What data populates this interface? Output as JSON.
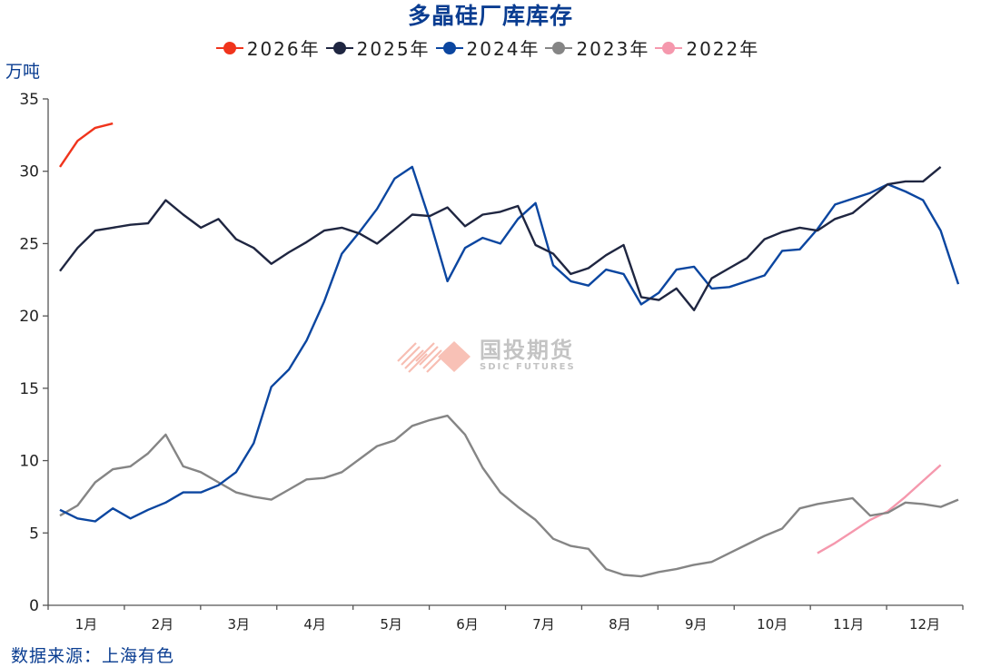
{
  "header": {
    "title": "多晶硅厂库库存",
    "unit": "万吨"
  },
  "legend": [
    {
      "label": "2026年",
      "color": "#f0341c"
    },
    {
      "label": "2025年",
      "color": "#1f2641"
    },
    {
      "label": "2024年",
      "color": "#0b46a0"
    },
    {
      "label": "2023年",
      "color": "#858585"
    },
    {
      "label": "2022年",
      "color": "#f598ad"
    }
  ],
  "footer": {
    "source": "数据来源：上海有色"
  },
  "watermark": {
    "name_cn": "国投期货",
    "name_en": "SDIC FUTURES"
  },
  "chart_data": {
    "type": "line",
    "title": "多晶硅厂库库存",
    "xlabel": "",
    "ylabel": "万吨",
    "ylim": [
      0,
      35
    ],
    "yticks": [
      0,
      5,
      10,
      15,
      20,
      25,
      30,
      35
    ],
    "xticks": [
      "1月",
      "2月",
      "3月",
      "4月",
      "5月",
      "6月",
      "7月",
      "8月",
      "9月",
      "10月",
      "11月",
      "12月"
    ],
    "x_unit": "week of year (1-52)",
    "grid": false,
    "legend_position": "top",
    "series": [
      {
        "name": "2026年",
        "color": "#f0341c",
        "start_week": 1,
        "values": [
          30.3,
          32.1,
          33.0,
          33.3
        ]
      },
      {
        "name": "2025年",
        "color": "#1f2641",
        "start_week": 1,
        "values": [
          23.1,
          24.7,
          25.9,
          26.1,
          26.3,
          26.4,
          28.0,
          27.0,
          26.1,
          26.7,
          25.3,
          24.7,
          23.6,
          24.4,
          25.1,
          25.9,
          26.1,
          25.7,
          25.0,
          26.0,
          27.0,
          26.9,
          27.5,
          26.2,
          27.0,
          27.2,
          27.6,
          24.9,
          24.3,
          22.9,
          23.3,
          24.2,
          24.9,
          21.3,
          21.1,
          21.9,
          20.4,
          22.6,
          23.3,
          24.0,
          25.3,
          25.8,
          26.1,
          25.9,
          26.7,
          27.1,
          28.1,
          29.1,
          29.3,
          29.3,
          30.3
        ]
      },
      {
        "name": "2024年",
        "color": "#0b46a0",
        "start_week": 1,
        "values": [
          6.6,
          6.0,
          5.8,
          6.7,
          6.0,
          6.6,
          7.1,
          7.8,
          7.8,
          8.3,
          9.2,
          11.2,
          15.1,
          16.3,
          18.3,
          21.0,
          24.3,
          25.8,
          27.4,
          29.5,
          30.3,
          26.6,
          22.4,
          24.7,
          25.4,
          25.0,
          26.7,
          27.8,
          23.5,
          22.4,
          22.1,
          23.2,
          22.9,
          20.8,
          21.6,
          23.2,
          23.4,
          21.9,
          22.0,
          22.4,
          22.8,
          24.5,
          24.6,
          26.0,
          27.7,
          28.1,
          28.5,
          29.1,
          28.6,
          28.0,
          25.9,
          22.2
        ]
      },
      {
        "name": "2023年",
        "color": "#858585",
        "start_week": 1,
        "values": [
          6.2,
          6.9,
          8.5,
          9.4,
          9.6,
          10.5,
          11.8,
          9.6,
          9.2,
          8.5,
          7.8,
          7.5,
          7.3,
          8.0,
          8.7,
          8.8,
          9.2,
          10.1,
          11.0,
          11.4,
          12.4,
          12.8,
          13.1,
          11.8,
          9.5,
          7.8,
          6.8,
          5.9,
          4.6,
          4.1,
          3.9,
          2.5,
          2.1,
          2.0,
          2.3,
          2.5,
          2.8,
          3.0,
          3.6,
          4.2,
          4.8,
          5.3,
          6.7,
          7.0,
          7.2,
          7.4,
          6.2,
          6.4,
          7.1,
          7.0,
          6.8,
          7.3
        ]
      },
      {
        "name": "2022年",
        "color": "#f598ad",
        "start_week": 44,
        "values": [
          3.6,
          4.3,
          5.1,
          5.9,
          6.5,
          7.5,
          8.6,
          9.7
        ]
      }
    ]
  }
}
